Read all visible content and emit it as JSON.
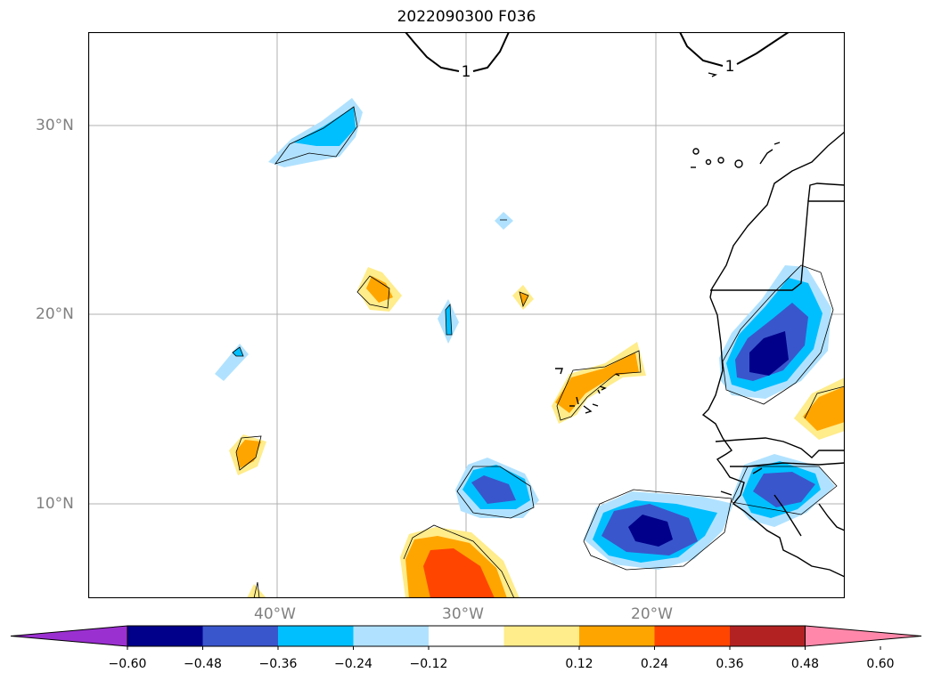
{
  "title": "2022090300 F036",
  "map": {
    "lat_labels": [
      "30°N",
      "20°N",
      "10°N"
    ],
    "lon_labels": [
      "40°W",
      "30°W",
      "20°W"
    ],
    "contour_labels": [
      "1",
      "1"
    ],
    "grid": true
  },
  "colorbar": {
    "ticks": [
      "−0.60",
      "−0.48",
      "−0.36",
      "−0.24",
      "−0.12",
      "0.12",
      "0.24",
      "0.36",
      "0.48",
      "0.60"
    ],
    "colors": {
      "under": "#9b30d0",
      "bins": [
        "#00008b",
        "#3a56cc",
        "#00bfff",
        "#b0e2ff",
        "#ffffff",
        "#ffec8b",
        "#ffa500",
        "#ff4500",
        "#b22222"
      ],
      "over": "#ff88aa"
    },
    "extend": "both"
  },
  "colors": {
    "navy": "#00008b",
    "royal": "#3a56cc",
    "sky": "#00bfff",
    "pale_blue": "#b0e2ff",
    "pale_yellow": "#ffec8b",
    "orange": "#ffa500",
    "red_orange": "#ff4500"
  }
}
